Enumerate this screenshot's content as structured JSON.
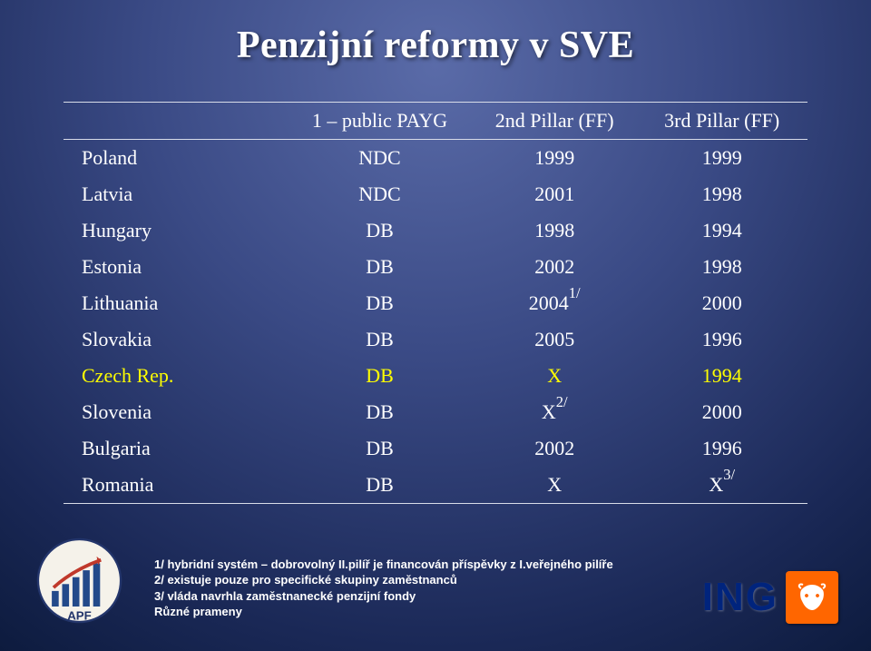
{
  "title": "Penzijní reformy v SVE",
  "table": {
    "columns": [
      "",
      "1 – public PAYG",
      "2nd Pillar (FF)",
      "3rd Pillar (FF)"
    ],
    "rows": [
      {
        "country": "Poland",
        "col1": "NDC",
        "col2": "1999",
        "col3": "1999",
        "highlight": false,
        "sup2": "",
        "sup3": ""
      },
      {
        "country": "Latvia",
        "col1": "NDC",
        "col2": "2001",
        "col3": "1998",
        "highlight": false,
        "sup2": "",
        "sup3": ""
      },
      {
        "country": "Hungary",
        "col1": "DB",
        "col2": "1998",
        "col3": "1994",
        "highlight": false,
        "sup2": "",
        "sup3": ""
      },
      {
        "country": "Estonia",
        "col1": "DB",
        "col2": "2002",
        "col3": "1998",
        "highlight": false,
        "sup2": "",
        "sup3": ""
      },
      {
        "country": "Lithuania",
        "col1": "DB",
        "col2": "2004",
        "col3": "2000",
        "highlight": false,
        "sup2": "1/",
        "sup3": ""
      },
      {
        "country": "Slovakia",
        "col1": "DB",
        "col2": "2005",
        "col3": "1996",
        "highlight": false,
        "sup2": "",
        "sup3": ""
      },
      {
        "country": "Czech Rep.",
        "col1": "DB",
        "col2": "X",
        "col3": "1994",
        "highlight": true,
        "sup2": "",
        "sup3": ""
      },
      {
        "country": "Slovenia",
        "col1": "DB",
        "col2": "X",
        "col3": "2000",
        "highlight": false,
        "sup2": "2/",
        "sup3": ""
      },
      {
        "country": "Bulgaria",
        "col1": "DB",
        "col2": "2002",
        "col3": "1996",
        "highlight": false,
        "sup2": "",
        "sup3": ""
      },
      {
        "country": "Romania",
        "col1": "DB",
        "col2": "X",
        "col3": "X",
        "highlight": false,
        "sup2": "",
        "sup3": "3/"
      }
    ]
  },
  "footnotes": [
    "1/ hybridní systém – dobrovolný II.pilíř je financován příspěvky z I.veřejného pilíře",
    "2/ existuje pouze pro specifické skupiny zaměstnanců",
    "3/ vláda navrhla zaměstnanecké penzijní fondy",
    "Různé prameny"
  ],
  "ing_label": "ING",
  "colors": {
    "background_center": "#5a6ba8",
    "background_edge": "#0d1b3e",
    "text": "#ffffff",
    "highlight": "#ffff00",
    "rule": "#d8dce8",
    "ing_text": "#00247d",
    "ing_lion_bg": "#ff6600"
  }
}
